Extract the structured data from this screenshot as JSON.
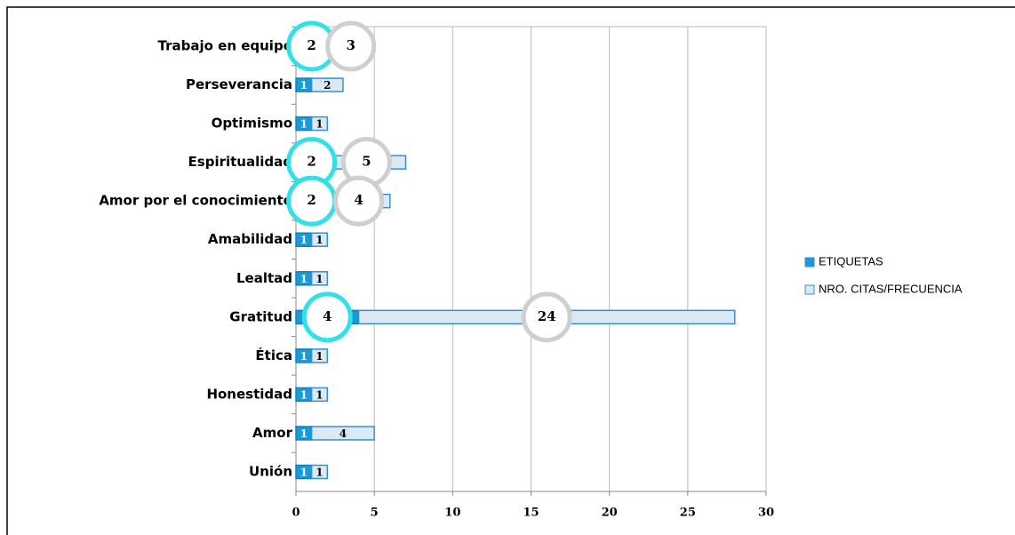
{
  "chart_data": {
    "type": "bar",
    "orientation": "horizontal",
    "stacked": true,
    "categories": [
      "Trabajo en equipo",
      "Perseverancia",
      "Optimismo",
      "Espiritualidad",
      "Amor por el conocimiento",
      "Amabilidad",
      "Lealtad",
      "Gratitud",
      "Ética",
      "Honestidad",
      "Amor",
      "Unión"
    ],
    "series": [
      {
        "name": "ETIQUETAS",
        "color": "#1a9ad6",
        "values": [
          2,
          1,
          1,
          2,
          2,
          1,
          1,
          4,
          1,
          1,
          1,
          1
        ]
      },
      {
        "name": "NRO. CITAS/FRECUENCIA",
        "color": "#dbe9f5",
        "values": [
          3,
          2,
          1,
          5,
          4,
          1,
          1,
          24,
          1,
          1,
          4,
          1
        ]
      }
    ],
    "xlim": [
      0,
      30
    ],
    "xticks": [
      0,
      5,
      10,
      15,
      20,
      25,
      30
    ],
    "grid": true,
    "legend": "right"
  }
}
